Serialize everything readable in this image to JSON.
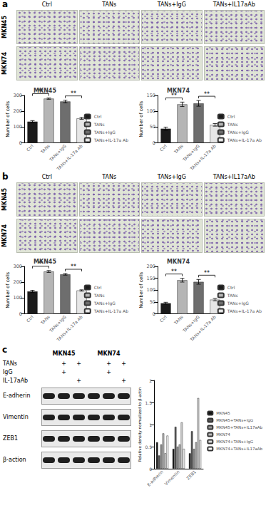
{
  "figure": {
    "micrographs": [
      {
        "label": "a",
        "columns": [
          "Ctrl",
          "TANs",
          "TANs+IgG",
          "TANs+IL17aAb"
        ],
        "rows": [
          "MKN45",
          "MKN74"
        ]
      },
      {
        "label": "b",
        "columns": [
          "Ctrl",
          "TANs",
          "TANs+IgG",
          "TANs+IL17aAb"
        ],
        "rows": [
          "MKN45",
          "MKN74"
        ]
      }
    ],
    "blot": {
      "label": "c",
      "cell_lines": [
        "MKN45",
        "MKN74"
      ],
      "treatments": [
        {
          "label": "TANs",
          "marks": [
            null,
            "+",
            "+",
            null,
            "+",
            "+"
          ]
        },
        {
          "label": "IgG",
          "marks": [
            null,
            "+",
            null,
            null,
            "+",
            null
          ]
        },
        {
          "label": "IL-17aAb",
          "marks": [
            null,
            null,
            "+",
            null,
            null,
            "+"
          ]
        }
      ],
      "proteins": [
        "E-adherin",
        "Vimentin",
        "ZEB1",
        "β-action"
      ]
    }
  },
  "chart_data": [
    {
      "type": "bar",
      "title": "MKN45",
      "y_label": "Number of cells",
      "categories": [
        "Ctrl",
        "TANs",
        "TANs+IgG",
        "TANs+IL-17a Ab"
      ],
      "values": [
        135,
        280,
        262,
        155
      ],
      "errors": [
        6,
        4,
        8,
        6
      ],
      "colors": [
        "#1a1a1a",
        "#b5b5b5",
        "#6e6e6e",
        "#e6e6e6"
      ],
      "ylim": [
        0,
        300
      ],
      "yticks": [
        0,
        100,
        200,
        300
      ],
      "legend": "right",
      "significance": [
        {
          "from": 0,
          "to": 1,
          "label": "**"
        },
        {
          "from": 2,
          "to": 3,
          "label": "**"
        }
      ]
    },
    {
      "type": "bar",
      "title": "MKN74",
      "y_label": "Number of cells",
      "categories": [
        "Ctrl",
        "TANs",
        "TANs+IgG",
        "TANs+IL-17a Ab"
      ],
      "values": [
        45,
        122,
        125,
        57
      ],
      "errors": [
        5,
        7,
        9,
        4
      ],
      "colors": [
        "#1a1a1a",
        "#b5b5b5",
        "#6e6e6e",
        "#e6e6e6"
      ],
      "ylim": [
        0,
        150
      ],
      "yticks": [
        0,
        50,
        100,
        150
      ],
      "legend": "right",
      "significance": [
        {
          "from": 0,
          "to": 1,
          "label": "**"
        },
        {
          "from": 2,
          "to": 3,
          "label": "**"
        }
      ]
    },
    {
      "type": "bar",
      "title": "MKN45",
      "y_label": "Number of cells",
      "categories": [
        "Ctrl",
        "TANs",
        "TANs+IgG",
        "TANs+IL-17a Ab"
      ],
      "values": [
        142,
        268,
        250,
        148
      ],
      "errors": [
        7,
        6,
        5,
        4
      ],
      "colors": [
        "#1a1a1a",
        "#b5b5b5",
        "#6e6e6e",
        "#e6e6e6"
      ],
      "ylim": [
        0,
        300
      ],
      "yticks": [
        0,
        100,
        200,
        300
      ],
      "legend": "right",
      "significance": [
        {
          "from": 0,
          "to": 1,
          "label": "**"
        },
        {
          "from": 2,
          "to": 3,
          "label": "**"
        }
      ]
    },
    {
      "type": "bar",
      "title": "MKN74",
      "y_label": "Number of cells",
      "categories": [
        "Ctrl",
        "TANs",
        "TANs+IgG",
        "TANs+IL-17a Ab"
      ],
      "values": [
        45,
        142,
        135,
        60
      ],
      "errors": [
        4,
        8,
        10,
        5
      ],
      "colors": [
        "#1a1a1a",
        "#b5b5b5",
        "#6e6e6e",
        "#e6e6e6"
      ],
      "ylim": [
        0,
        200
      ],
      "yticks": [
        0,
        50,
        100,
        150,
        200
      ],
      "legend": "right",
      "significance": [
        {
          "from": 0,
          "to": 1,
          "label": "**"
        },
        {
          "from": 2,
          "to": 3,
          "label": "**"
        }
      ]
    },
    {
      "type": "bar",
      "y_label": "Relative density normalized to β-actin",
      "categories": [
        "E-adherin",
        "Vimentin",
        "ZEB1"
      ],
      "series": [
        {
          "name": "MKN45",
          "color": "#111111",
          "values": [
            0.6,
            0.45,
            0.35
          ]
        },
        {
          "name": "MKN45+TANs+IgG",
          "color": "#555555",
          "values": [
            0.3,
            0.95,
            0.85
          ]
        },
        {
          "name": "MKN45+TANs+IL17aAb",
          "color": "#999999",
          "values": [
            0.55,
            0.5,
            0.45
          ]
        },
        {
          "name": "MKN74",
          "color": "#bbbbbb",
          "values": [
            0.8,
            0.55,
            0.6
          ]
        },
        {
          "name": "MKN74+TANs+IgG",
          "color": "#dddddd",
          "values": [
            0.35,
            1.05,
            1.6
          ]
        },
        {
          "name": "MKN74+TANs+IL17aAb",
          "color": "#ffffff",
          "values": [
            0.75,
            0.45,
            0.65
          ]
        }
      ],
      "ylim": [
        0,
        2
      ],
      "yticks": [
        0,
        0.5,
        1,
        1.5,
        2
      ],
      "legend": "right"
    }
  ]
}
